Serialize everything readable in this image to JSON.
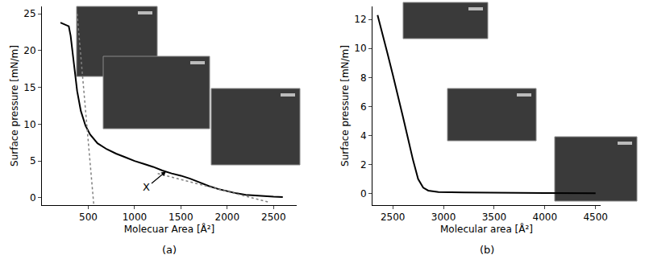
{
  "chart_data": [
    {
      "type": "line",
      "title": "(a)",
      "xlabel": "Molecuar Area [Å²]",
      "ylabel": "Surface pressure [mN/m]",
      "xlim": [
        0,
        2750
      ],
      "ylim": [
        -1,
        26
      ],
      "xticks": [
        500,
        1000,
        1500,
        2000,
        2500
      ],
      "yticks": [
        0,
        5,
        10,
        15,
        20,
        25
      ],
      "series": [
        {
          "x": [
            200,
            250,
            290,
            310,
            330,
            350,
            380,
            420,
            470,
            520,
            600,
            700,
            800,
            900,
            1000,
            1100,
            1200,
            1300,
            1400,
            1500,
            1600,
            1700,
            1800,
            1900,
            2000,
            2100,
            2200,
            2300,
            2400,
            2500,
            2600
          ],
          "values": [
            23.8,
            23.5,
            23.3,
            22.0,
            20.0,
            17.5,
            14.5,
            11.8,
            9.8,
            8.6,
            7.4,
            6.6,
            6.0,
            5.5,
            5.0,
            4.6,
            4.2,
            3.7,
            3.3,
            3.0,
            2.6,
            2.1,
            1.6,
            1.2,
            0.9,
            0.6,
            0.4,
            0.3,
            0.2,
            0.15,
            0.1
          ],
          "color": "#000000",
          "line_style": "solid"
        },
        {
          "x": [
            380,
            560
          ],
          "values": [
            25,
            -1
          ],
          "color": "#808080",
          "line_style": "dotted"
        },
        {
          "x": [
            1250,
            2450
          ],
          "values": [
            3.3,
            -0.6
          ],
          "color": "#808080",
          "line_style": "dotted"
        }
      ],
      "annotations": [
        {
          "text": "X",
          "x": 1340,
          "y": 3.6
        }
      ]
    },
    {
      "type": "line",
      "title": "(b)",
      "xlabel": "Molecular area [Å²]",
      "ylabel": "Surface pressure [mN/m]",
      "xlim": [
        2300,
        4550
      ],
      "ylim": [
        -0.8,
        12.9
      ],
      "xticks": [
        2500,
        3000,
        3500,
        4000,
        4500
      ],
      "yticks": [
        0,
        2,
        4,
        6,
        8,
        10,
        12
      ],
      "series": [
        {
          "x": [
            2350,
            2400,
            2450,
            2500,
            2550,
            2600,
            2650,
            2700,
            2750,
            2800,
            2850,
            2950,
            3200,
            3500,
            4000,
            4500
          ],
          "values": [
            12.3,
            11.0,
            9.6,
            8.2,
            6.8,
            5.3,
            3.8,
            2.3,
            1.0,
            0.4,
            0.2,
            0.1,
            0.08,
            0.05,
            0.03,
            0.02
          ],
          "color": "#000000",
          "line_style": "solid"
        }
      ]
    }
  ]
}
